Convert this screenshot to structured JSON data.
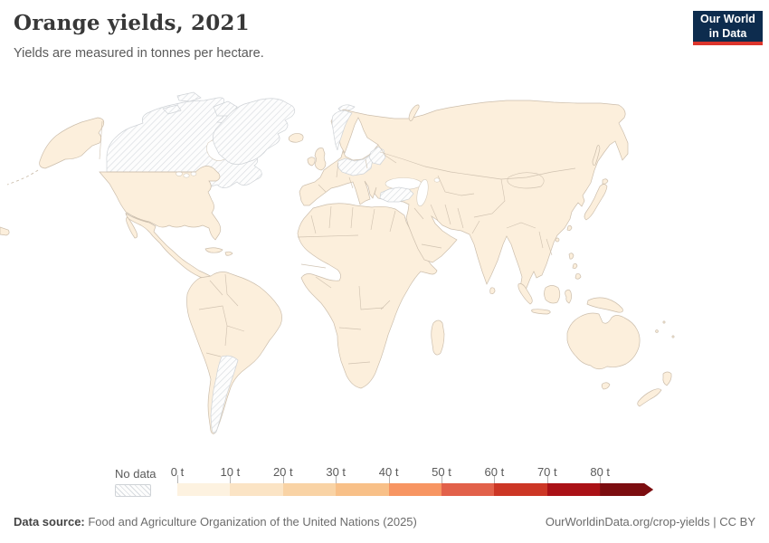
{
  "header": {
    "title": "Orange yields, 2021",
    "subtitle": "Yields are measured in tonnes per hectare."
  },
  "logo": {
    "line1": "Our World",
    "line2": "in Data",
    "bg_color": "#0d2c4e",
    "accent_color": "#dc352c"
  },
  "chart_data": {
    "type": "choropleth",
    "title": "Orange yields, 2021",
    "unit": "tonnes per hectare",
    "unit_short": "t",
    "year": "2021",
    "legend": {
      "no_data_label": "No data",
      "bins": [
        {
          "label": "0 t",
          "color": "#fdf2e0"
        },
        {
          "label": "10 t",
          "color": "#fbe4c5"
        },
        {
          "label": "20 t",
          "color": "#f9d3a5"
        },
        {
          "label": "30 t",
          "color": "#f8c088"
        },
        {
          "label": "40 t",
          "color": "#f79562"
        },
        {
          "label": "50 t",
          "color": "#e2614a"
        },
        {
          "label": "60 t",
          "color": "#cc3625"
        },
        {
          "label": "70 t",
          "color": "#aa1116"
        },
        {
          "label": "80 t",
          "color": "#7c0d10",
          "open_ended": true
        }
      ]
    },
    "map": {
      "land_color": "#fcefdc",
      "border_color": "#ccbeac",
      "ocean_color": "#ffffff",
      "hatch_line_color": "#d8dce0",
      "observed": {
        "most_countries_bin": "0–20 t",
        "no_data_regions": [
          "Canada",
          "Greenland",
          "Argentina",
          "Norway",
          "Germany",
          "Poland",
          "Baltic states",
          "Belarus",
          "Turkey",
          "Svalbard"
        ]
      }
    }
  },
  "footer": {
    "source_label": "Data source:",
    "source_text": " Food and Agriculture Organization of the United Nations (2025)",
    "credit": "OurWorldinData.org/crop-yields | CC BY"
  }
}
